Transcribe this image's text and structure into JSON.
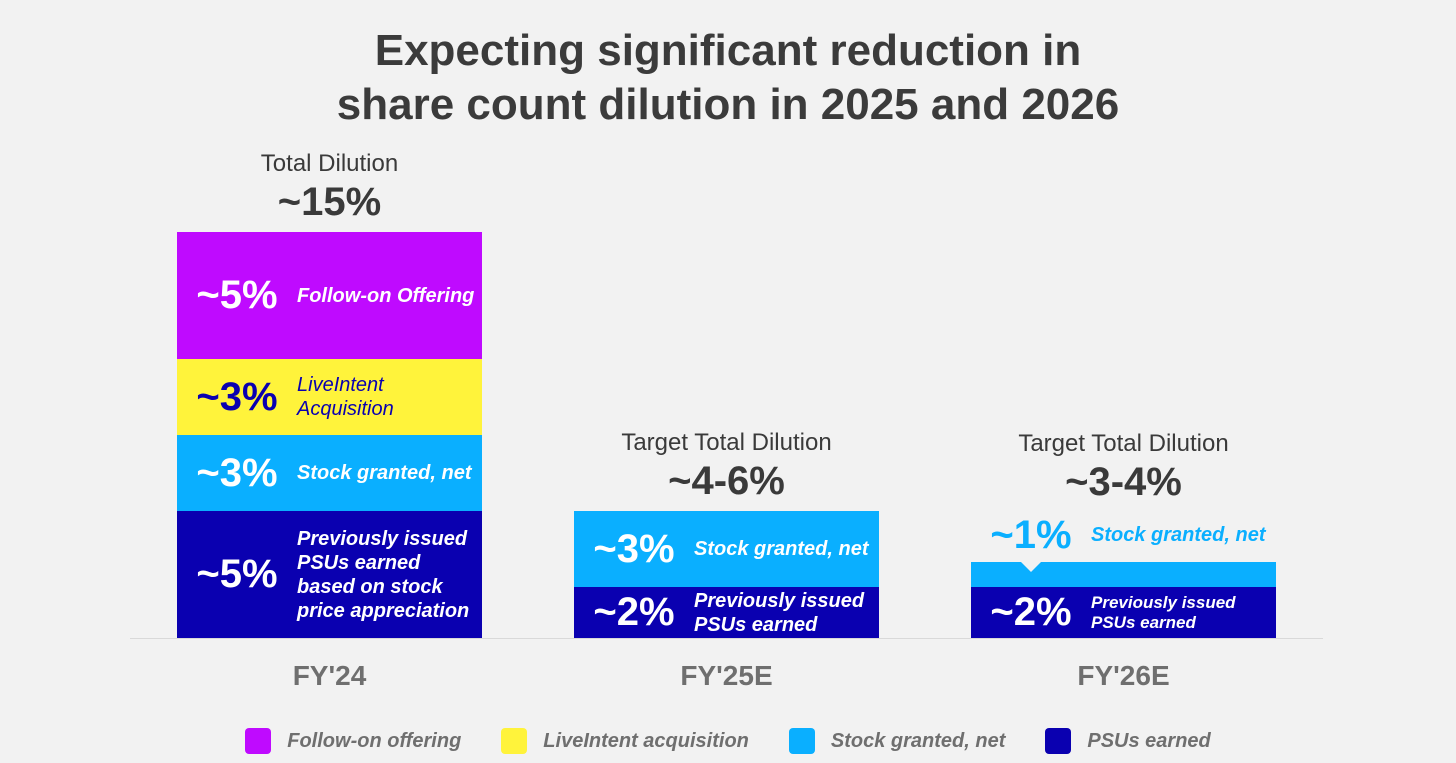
{
  "chart_data": {
    "type": "bar",
    "stacked": true,
    "title": "Expecting significant reduction in share count dilution in 2025 and 2026",
    "title_lines": [
      "Expecting significant reduction in",
      "share count dilution in 2025 and 2026"
    ],
    "unit": "%",
    "categories": [
      "FY'24",
      "FY'25E",
      "FY'26E"
    ],
    "series": [
      {
        "name": "Follow-on offering",
        "color": "#bf0aff",
        "values": [
          5,
          0,
          0
        ]
      },
      {
        "name": "LiveIntent acquisition",
        "color": "#fff33b",
        "values": [
          3,
          0,
          0
        ]
      },
      {
        "name": "Stock granted, net",
        "color": "#0aafff",
        "values": [
          3,
          3,
          1
        ]
      },
      {
        "name": "PSUs earned",
        "color": "#0a00b0",
        "values": [
          5,
          2,
          2
        ]
      }
    ],
    "bars": [
      {
        "category": "FY'24",
        "total_label": "Total Dilution",
        "total_value": "~15%",
        "segments": [
          {
            "series": 0,
            "value": 5,
            "label": "~5%",
            "desc": "Follow-on Offering",
            "text_color": "#ffffff"
          },
          {
            "series": 1,
            "value": 3,
            "label": "~3%",
            "desc": "LiveIntent Acquisition",
            "text_color": "#0a00b0"
          },
          {
            "series": 2,
            "value": 3,
            "label": "~3%",
            "desc": "Stock granted, net",
            "text_color": "#ffffff"
          },
          {
            "series": 3,
            "value": 5,
            "label": "~5%",
            "desc": "Previously issued PSUs earned based on stock price appreciation",
            "text_color": "#ffffff"
          }
        ]
      },
      {
        "category": "FY'25E",
        "total_label": "Target Total Dilution",
        "total_value": "~4-6%",
        "segments": [
          {
            "series": 2,
            "value": 3,
            "label": "~3%",
            "desc": "Stock granted, net",
            "text_color": "#ffffff"
          },
          {
            "series": 3,
            "value": 2,
            "label": "~2%",
            "desc": "Previously issued PSUs earned",
            "text_color": "#ffffff"
          }
        ]
      },
      {
        "category": "FY'26E",
        "total_label": "Target Total Dilution",
        "total_value": "~3-4%",
        "segments": [
          {
            "series": 2,
            "value": 1,
            "label": "~1%",
            "desc": "Stock granted, net",
            "text_color": "#0aafff",
            "outside": true
          },
          {
            "series": 3,
            "value": 2,
            "label": "~2%",
            "desc": "Previously issued PSUs earned",
            "text_color": "#ffffff"
          }
        ]
      }
    ],
    "legend": [
      "Follow-on offering",
      "LiveIntent acquisition",
      "Stock granted, net",
      "PSUs earned"
    ],
    "legend_position": "bottom",
    "grid": false
  }
}
